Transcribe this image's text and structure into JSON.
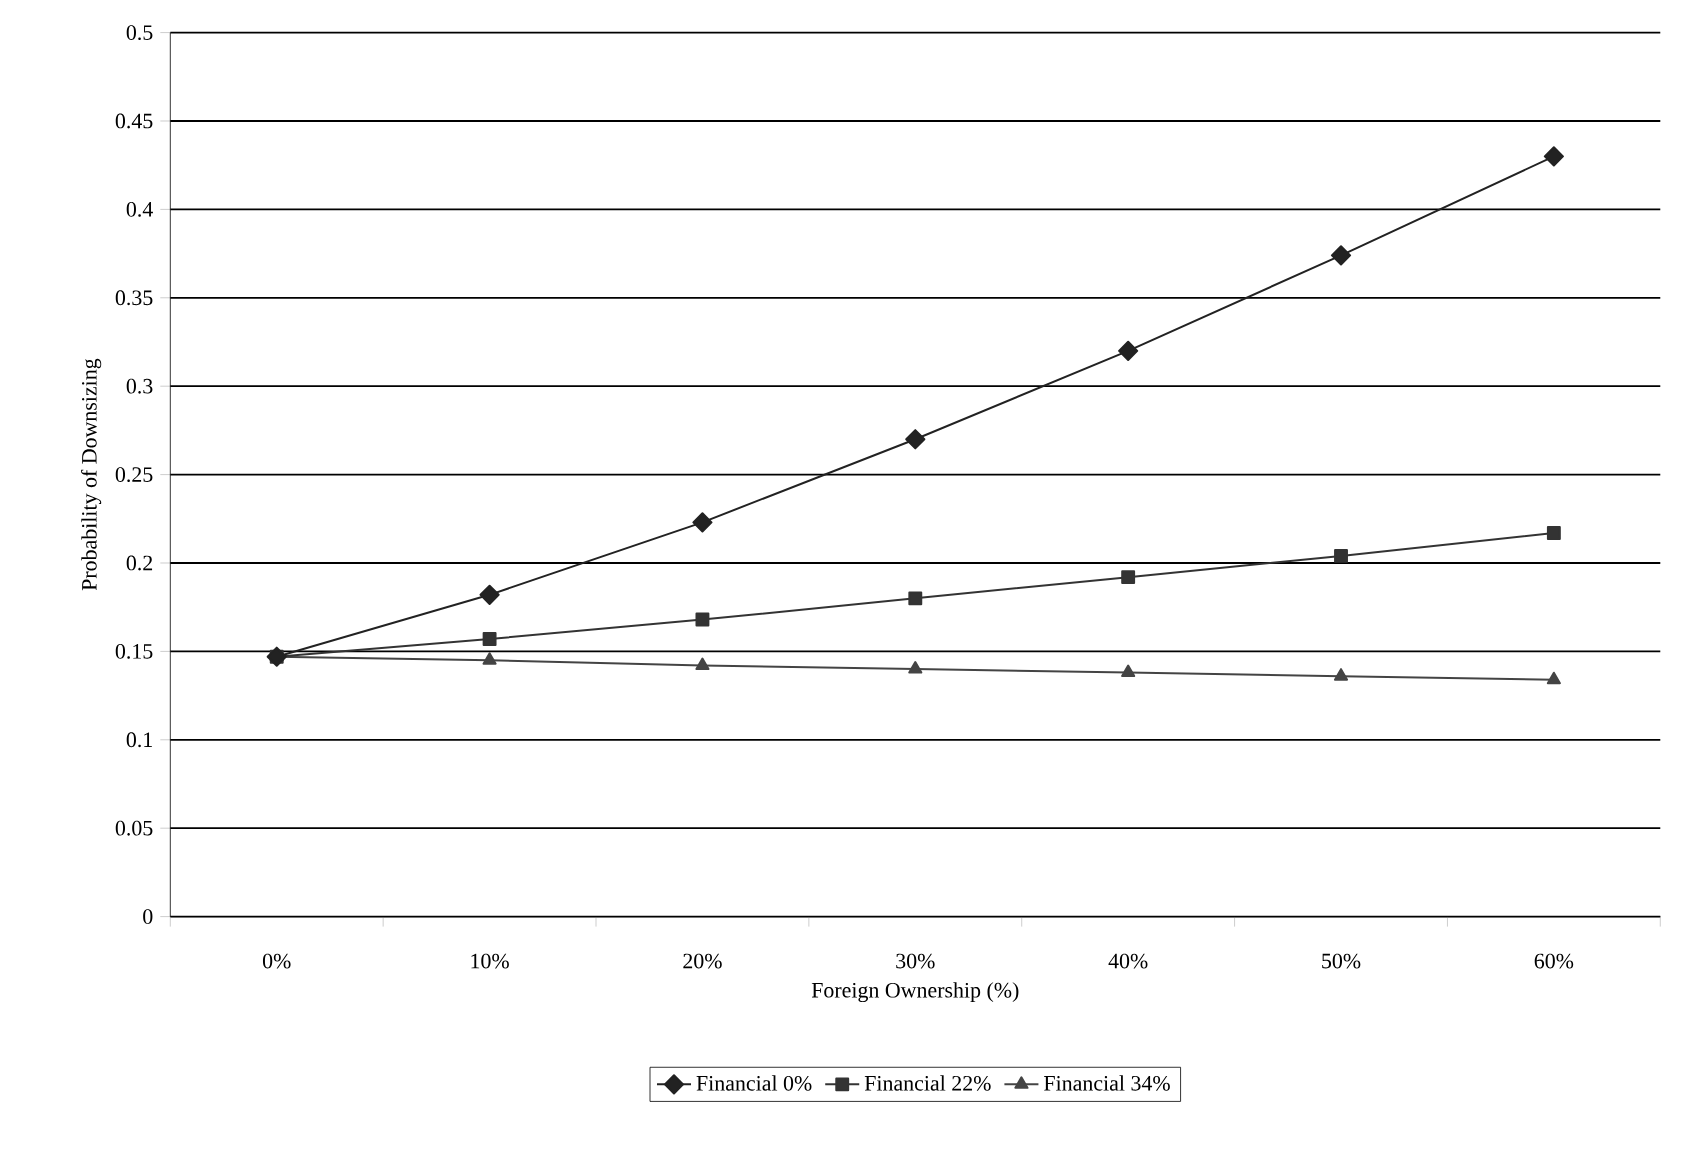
{
  "chart_data": {
    "type": "line",
    "xlabel": "Foreign Ownership (%)",
    "ylabel": "Probability of Downsizing",
    "categories": [
      "0%",
      "10%",
      "20%",
      "30%",
      "40%",
      "50%",
      "60%"
    ],
    "series": [
      {
        "name": "Financial 0%",
        "color": "#222222",
        "marker": "diamond",
        "values": [
          0.147,
          0.182,
          0.223,
          0.27,
          0.32,
          0.374,
          0.43
        ]
      },
      {
        "name": "Financial 22%",
        "color": "#333333",
        "marker": "square",
        "values": [
          0.147,
          0.157,
          0.168,
          0.18,
          0.192,
          0.204,
          0.217
        ]
      },
      {
        "name": "Financial 34%",
        "color": "#444444",
        "marker": "triangle",
        "values": [
          0.147,
          0.145,
          0.142,
          0.14,
          0.138,
          0.136,
          0.134
        ]
      }
    ],
    "ylim": [
      0,
      0.5
    ],
    "yticks": [
      0,
      0.05,
      0.1,
      0.15,
      0.2,
      0.25,
      0.3,
      0.35,
      0.4,
      0.45,
      0.5
    ],
    "grid": "y",
    "legend": "bottom",
    "line_style": "solid"
  }
}
